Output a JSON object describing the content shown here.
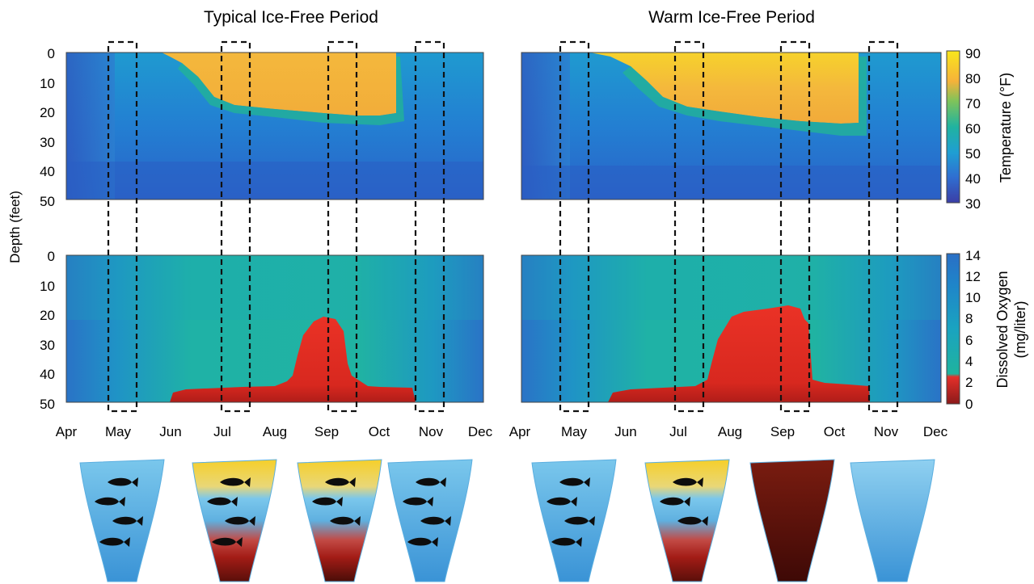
{
  "panels": {
    "left_title": "Typical Ice-Free Period",
    "right_title": "Warm Ice-Free Period"
  },
  "axes": {
    "ylabel": "Depth (feet)",
    "depth_ticks": [
      "0",
      "10",
      "20",
      "30",
      "40",
      "50"
    ],
    "months": [
      "Apr",
      "May",
      "Jun",
      "Jul",
      "Aug",
      "Sep",
      "Oct",
      "Nov",
      "Dec"
    ]
  },
  "colorbars": {
    "temperature": {
      "label": "Temperature (°F)",
      "ticks": [
        "30",
        "40",
        "50",
        "60",
        "70",
        "80",
        "90"
      ],
      "range": [
        30,
        90
      ],
      "colors": [
        "#3b3ea6",
        "#2f6fd1",
        "#1f9ed3",
        "#20b3a0",
        "#7fc35a",
        "#f5b23a",
        "#f9e61c"
      ]
    },
    "oxygen": {
      "label_line1": "Dissolved Oxygen",
      "label_line2": "(mg/liter)",
      "ticks": [
        "0",
        "2",
        "4",
        "6",
        "8",
        "10",
        "12",
        "14"
      ],
      "range": [
        0,
        14
      ],
      "colors": [
        "#8b1a1a",
        "#e4302a",
        "#1fb39e",
        "#1aa3c0",
        "#1f84c9",
        "#2a6fc5"
      ]
    }
  },
  "chart_data": [
    {
      "type": "heatmap",
      "title": "Typical Ice-Free Period",
      "variable": "Temperature (°F)",
      "xlabel": "",
      "ylabel": "Depth (feet)",
      "x_range": [
        "Apr",
        "Dec"
      ],
      "ylim": [
        0,
        50
      ],
      "warm_layer_bottom_depth_ft": [
        [
          5.0,
          0
        ],
        [
          5.4,
          5
        ],
        [
          5.8,
          12
        ],
        [
          6.1,
          18
        ],
        [
          6.6,
          19
        ],
        [
          7.0,
          20
        ],
        [
          7.4,
          21
        ],
        [
          7.9,
          22
        ],
        [
          8.3,
          22
        ]
      ],
      "warm_layer_temp_F": 75,
      "cold_water_temp_F": 45
    },
    {
      "type": "heatmap",
      "title": "Warm Ice-Free Period",
      "variable": "Temperature (°F)",
      "xlabel": "",
      "ylabel": "",
      "x_range": [
        "Apr",
        "Dec"
      ],
      "ylim": [
        0,
        50
      ],
      "warm_layer_bottom_depth_ft": [
        [
          5.0,
          0
        ],
        [
          5.3,
          6
        ],
        [
          5.8,
          12
        ],
        [
          6.2,
          17
        ],
        [
          6.7,
          19
        ],
        [
          7.2,
          20
        ],
        [
          7.7,
          22
        ],
        [
          8.1,
          23
        ],
        [
          8.5,
          25
        ]
      ],
      "warm_layer_temp_F": 80,
      "cold_water_temp_F": 45
    },
    {
      "type": "heatmap",
      "title": "",
      "variable": "Dissolved Oxygen (mg/liter)",
      "xlabel": "",
      "ylabel": "Depth (feet)",
      "x_range": [
        "Apr",
        "Dec"
      ],
      "ylim": [
        0,
        50
      ],
      "low_oxygen_top_depth_ft": [
        [
          6.0,
          50
        ],
        [
          6.1,
          47
        ],
        [
          6.5,
          46
        ],
        [
          7.0,
          45
        ],
        [
          7.5,
          44
        ],
        [
          7.8,
          42
        ],
        [
          8.0,
          35
        ],
        [
          8.2,
          25
        ],
        [
          8.4,
          21
        ],
        [
          8.6,
          22
        ],
        [
          8.7,
          28
        ],
        [
          8.75,
          42
        ],
        [
          9.0,
          44
        ],
        [
          9.5,
          45
        ],
        [
          9.9,
          46
        ],
        [
          10.0,
          50
        ]
      ],
      "low_oxygen_mg_per_l": 1,
      "background_mg_per_l": 6
    },
    {
      "type": "heatmap",
      "title": "",
      "variable": "Dissolved Oxygen (mg/liter)",
      "xlabel": "",
      "ylabel": "",
      "x_range": [
        "Apr",
        "Dec"
      ],
      "ylim": [
        0,
        50
      ],
      "low_oxygen_top_depth_ft": [
        [
          5.9,
          50
        ],
        [
          6.0,
          47
        ],
        [
          6.5,
          46
        ],
        [
          7.0,
          45
        ],
        [
          7.4,
          42
        ],
        [
          7.6,
          38
        ],
        [
          7.8,
          30
        ],
        [
          8.0,
          20
        ],
        [
          8.4,
          19
        ],
        [
          8.8,
          18
        ],
        [
          9.0,
          17
        ],
        [
          9.2,
          19
        ],
        [
          9.3,
          22
        ],
        [
          9.4,
          42
        ],
        [
          9.6,
          44
        ],
        [
          10.0,
          45
        ],
        [
          10.3,
          46
        ],
        [
          10.4,
          50
        ]
      ],
      "low_oxygen_mg_per_l": 1,
      "background_mg_per_l": 6
    }
  ],
  "snapshot_months": [
    "May",
    "Jul",
    "Sep",
    "Nov"
  ],
  "lake_profiles": [
    {
      "name": "typical-may",
      "surface": "#7ac7ec",
      "bottom": "#3a93d6",
      "fish": 4
    },
    {
      "name": "typical-jul",
      "surface": "#f6cf2a",
      "bottom": "#5a0f0a",
      "fish": 4
    },
    {
      "name": "typical-sep",
      "surface": "#f6cf2a",
      "bottom": "#4a0d08",
      "fish": 3
    },
    {
      "name": "typical-nov",
      "surface": "#7ac7ec",
      "bottom": "#3a93d6",
      "fish": 4
    },
    {
      "name": "warm-may",
      "surface": "#7ac7ec",
      "bottom": "#3a93d6",
      "fish": 4
    },
    {
      "name": "warm-jul",
      "surface": "#f6cf2a",
      "bottom": "#5a0f0a",
      "fish": 3
    },
    {
      "name": "warm-sep",
      "surface": "#7a1c10",
      "bottom": "#3e0906",
      "fish": 0
    },
    {
      "name": "warm-nov",
      "surface": "#8fd0f0",
      "bottom": "#3a93d6",
      "fish": 0
    }
  ]
}
